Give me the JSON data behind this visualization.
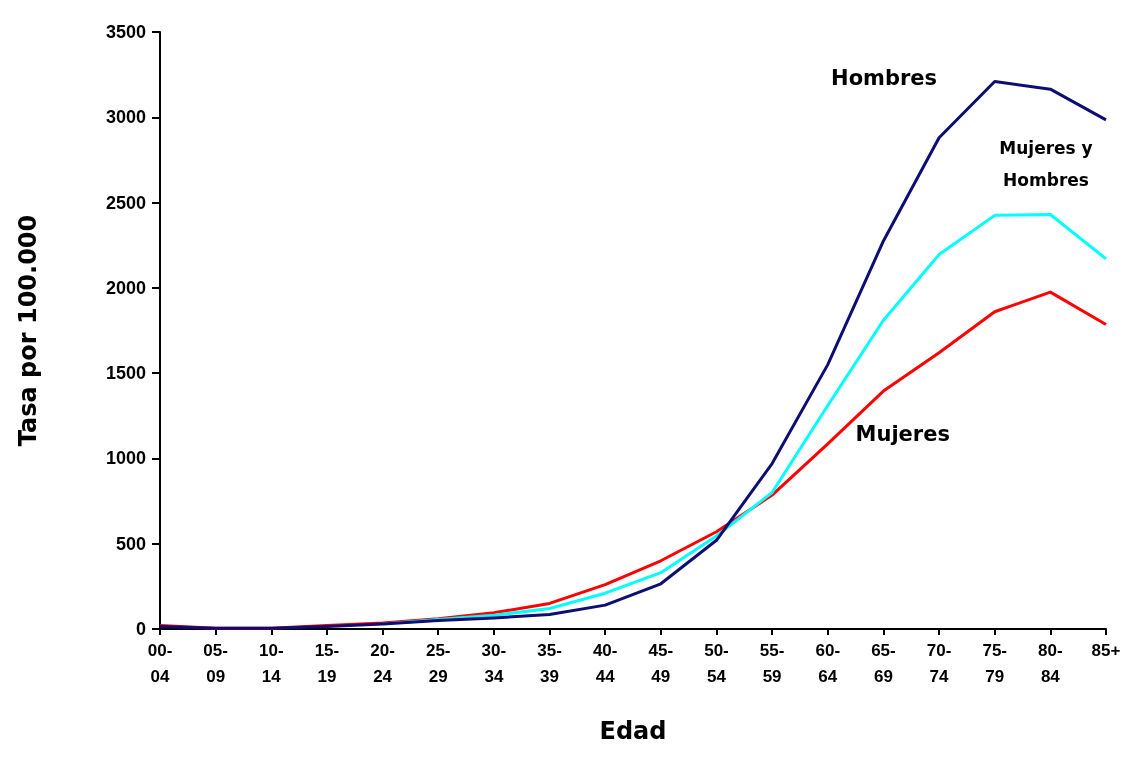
{
  "chart_data": {
    "type": "line",
    "xlabel": "Edad",
    "ylabel": "Tasa por 100.000",
    "categories": [
      "00-04",
      "05-09",
      "10-14",
      "15-19",
      "20-24",
      "25-29",
      "30-34",
      "35-39",
      "40-44",
      "45-49",
      "50-54",
      "55-59",
      "60-64",
      "65-69",
      "70-74",
      "75-79",
      "80-84",
      "85+"
    ],
    "series": [
      {
        "name": "Hombres",
        "color": "#0d0d73",
        "values": [
          15,
          5,
          5,
          15,
          30,
          50,
          65,
          85,
          140,
          265,
          520,
          970,
          1550,
          2275,
          2880,
          3210,
          3165,
          2985
        ]
      },
      {
        "name": "Mujeres y Hombres",
        "color": "#00ffff",
        "values": [
          null,
          null,
          null,
          null,
          30,
          55,
          80,
          120,
          210,
          330,
          545,
          800,
          1310,
          1810,
          2195,
          2425,
          2430,
          2170
        ]
      },
      {
        "name": "Mujeres",
        "color": "#ff0000",
        "values": [
          20,
          5,
          5,
          20,
          35,
          60,
          95,
          150,
          260,
          400,
          570,
          785,
          1085,
          1395,
          1620,
          1860,
          1975,
          1785
        ]
      }
    ],
    "ylim": [
      0,
      3500
    ],
    "yticks": [
      0,
      500,
      1000,
      1500,
      2000,
      2500,
      3000,
      3500
    ],
    "grid": false,
    "legend": false,
    "marker": "none",
    "line_style": "solid"
  }
}
